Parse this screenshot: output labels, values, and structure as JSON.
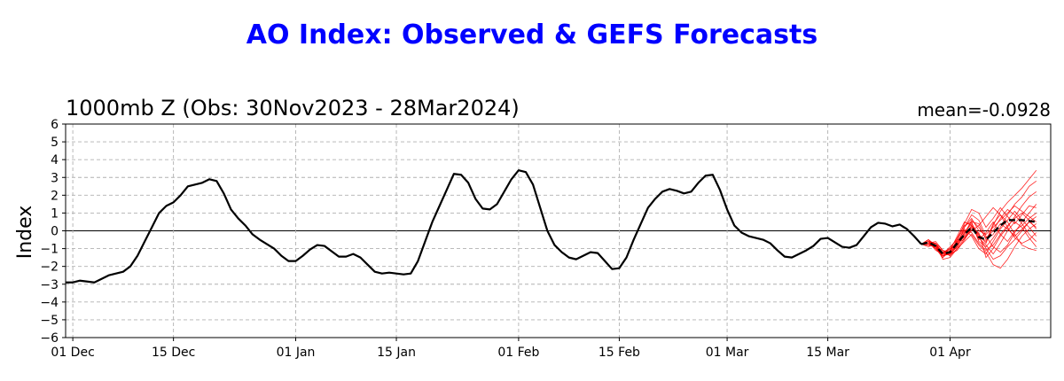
{
  "title": "AO Index: Observed & GEFS Forecasts",
  "subtitle_left": "1000mb Z (Obs: 30Nov2023 - 28Mar2024)",
  "subtitle_right": "mean=-0.0928",
  "colors": {
    "title": "#0000ff",
    "observed": "#000000",
    "members": "#ff0000",
    "grid": "#b0b0b0"
  },
  "chart_data": {
    "type": "line",
    "ylabel": "Index",
    "xlabel": "",
    "ylim": [
      -6,
      6
    ],
    "xlim": [
      "2023-11-30",
      "2024-04-15"
    ],
    "yticks": [
      -6,
      -5,
      -4,
      -3,
      -2,
      -1,
      0,
      1,
      2,
      3,
      4,
      5,
      6
    ],
    "xticks": [
      {
        "date": "2023-12-01",
        "label": "01 Dec"
      },
      {
        "date": "2023-12-15",
        "label": "15 Dec"
      },
      {
        "date": "2024-01-01",
        "label": "01 Jan"
      },
      {
        "date": "2024-01-15",
        "label": "15 Jan"
      },
      {
        "date": "2024-02-01",
        "label": "01 Feb"
      },
      {
        "date": "2024-02-15",
        "label": "15 Feb"
      },
      {
        "date": "2024-03-01",
        "label": "01 Mar"
      },
      {
        "date": "2024-03-15",
        "label": "15 Mar"
      },
      {
        "date": "2024-04-01",
        "label": "01 Apr"
      }
    ],
    "grid": true,
    "zero_line": true,
    "observed": {
      "start_date": "2023-11-30",
      "values": [
        -2.9,
        -2.9,
        -2.8,
        -2.85,
        -2.9,
        -2.7,
        -2.5,
        -2.4,
        -2.3,
        -2.0,
        -1.4,
        -0.6,
        0.2,
        1.0,
        1.4,
        1.6,
        2.0,
        2.5,
        2.6,
        2.7,
        2.9,
        2.8,
        2.1,
        1.2,
        0.7,
        0.3,
        -0.2,
        -0.5,
        -0.75,
        -1.0,
        -1.4,
        -1.7,
        -1.7,
        -1.4,
        -1.05,
        -0.8,
        -0.85,
        -1.15,
        -1.45,
        -1.45,
        -1.3,
        -1.5,
        -1.9,
        -2.3,
        -2.4,
        -2.35,
        -2.4,
        -2.45,
        -2.4,
        -1.7,
        -0.6,
        0.5,
        1.4,
        2.3,
        3.2,
        3.15,
        2.7,
        1.8,
        1.25,
        1.2,
        1.5,
        2.2,
        2.9,
        3.4,
        3.3,
        2.6,
        1.3,
        0.0,
        -0.8,
        -1.2,
        -1.5,
        -1.6,
        -1.4,
        -1.2,
        -1.25,
        -1.7,
        -2.15,
        -2.1,
        -1.5,
        -0.5,
        0.4,
        1.3,
        1.8,
        2.2,
        2.35,
        2.25,
        2.1,
        2.2,
        2.7,
        3.1,
        3.15,
        2.3,
        1.2,
        0.3,
        -0.1,
        -0.3,
        -0.4,
        -0.5,
        -0.7,
        -1.1,
        -1.45,
        -1.5,
        -1.3,
        -1.1,
        -0.85,
        -0.45,
        -0.4,
        -0.65,
        -0.9,
        -0.95,
        -0.8,
        -0.3,
        0.2,
        0.45,
        0.4,
        0.25,
        0.35,
        0.1,
        -0.3,
        -0.75
      ]
    },
    "ensemble_mean": {
      "start_date": "2024-03-28",
      "values": [
        -0.75,
        -0.65,
        -0.85,
        -1.3,
        -1.2,
        -0.7,
        -0.2,
        0.2,
        -0.35,
        -0.5,
        -0.1,
        0.3,
        0.6,
        0.6,
        0.6,
        0.55,
        0.5
      ]
    },
    "members": {
      "start_date": "2024-03-28",
      "series": [
        {
          "values": [
            -0.75,
            -0.6,
            -0.9,
            -1.4,
            -1.3,
            -0.9,
            -0.1,
            0.4,
            -0.2,
            -0.7,
            0.3,
            1.1,
            1.6,
            2.0,
            2.4,
            2.9,
            3.4
          ]
        },
        {
          "values": [
            -0.75,
            -0.7,
            -0.8,
            -1.2,
            -1.0,
            -0.4,
            0.3,
            0.5,
            -0.6,
            -0.9,
            -0.4,
            0.2,
            0.9,
            1.5,
            1.9,
            2.5,
            2.8
          ]
        },
        {
          "values": [
            -0.75,
            -0.5,
            -1.0,
            -1.5,
            -1.1,
            -0.6,
            -0.5,
            0.1,
            -0.1,
            -1.5,
            -1.0,
            -0.3,
            0.2,
            0.8,
            1.4,
            1.9,
            2.2
          ]
        },
        {
          "values": [
            -0.75,
            -0.8,
            -0.7,
            -1.1,
            -1.4,
            -0.8,
            0.2,
            0.9,
            0.6,
            -0.3,
            -0.9,
            -1.2,
            -0.8,
            -0.1,
            0.5,
            1.0,
            1.5
          ]
        },
        {
          "values": [
            -0.75,
            -0.6,
            -1.1,
            -1.3,
            -0.9,
            -0.5,
            -0.4,
            0.0,
            0.3,
            0.8,
            1.3,
            0.9,
            0.2,
            -0.4,
            -0.7,
            -0.5,
            -0.1
          ]
        },
        {
          "values": [
            -0.75,
            -0.7,
            -0.8,
            -1.6,
            -1.5,
            -1.0,
            -0.6,
            -0.2,
            -0.8,
            -1.2,
            -1.9,
            -2.1,
            -1.6,
            -0.9,
            -0.3,
            0.1,
            0.4
          ]
        },
        {
          "values": [
            -0.75,
            -0.5,
            -0.9,
            -1.2,
            -1.2,
            -0.5,
            0.4,
            1.2,
            1.0,
            0.2,
            0.7,
            1.3,
            0.8,
            0.4,
            0.9,
            1.4,
            1.3
          ]
        },
        {
          "values": [
            -0.75,
            -0.9,
            -0.7,
            -1.3,
            -1.0,
            -0.8,
            -0.3,
            0.3,
            -0.5,
            -0.1,
            0.5,
            -0.2,
            -0.6,
            0.0,
            0.3,
            0.7,
            1.0
          ]
        },
        {
          "values": [
            -0.75,
            -0.6,
            -1.0,
            -1.4,
            -1.3,
            -0.7,
            0.1,
            -0.3,
            -1.0,
            -1.3,
            -0.6,
            0.1,
            0.6,
            1.1,
            0.6,
            0.2,
            -0.3
          ]
        },
        {
          "values": [
            -0.75,
            -0.7,
            -0.6,
            -1.1,
            -1.2,
            -0.9,
            -0.2,
            0.6,
            0.2,
            -0.4,
            0.0,
            0.7,
            1.2,
            0.9,
            0.4,
            -0.2,
            -0.6
          ]
        },
        {
          "values": [
            -0.75,
            -0.8,
            -0.9,
            -1.5,
            -1.1,
            -0.3,
            0.5,
            0.3,
            -0.4,
            -0.8,
            -1.3,
            -0.7,
            0.0,
            0.5,
            0.2,
            -0.4,
            -0.9
          ]
        },
        {
          "values": [
            -0.75,
            -0.5,
            -0.8,
            -1.2,
            -1.4,
            -1.0,
            -0.4,
            0.2,
            -0.2,
            -0.6,
            0.4,
            0.9,
            0.5,
            -0.2,
            -0.8,
            -1.0,
            -1.1
          ]
        },
        {
          "values": [
            -0.75,
            -0.6,
            -0.7,
            -1.3,
            -1.3,
            -0.6,
            0.0,
            -0.1,
            -0.7,
            -1.1,
            -0.8,
            -0.2,
            0.3,
            0.7,
            1.0,
            0.6,
            0.1
          ]
        },
        {
          "values": [
            -0.75,
            -0.7,
            -1.0,
            -1.4,
            -1.2,
            -0.5,
            0.2,
            0.7,
            0.0,
            -0.2,
            0.2,
            0.6,
            1.0,
            1.4,
            1.1,
            0.8,
            0.5
          ]
        },
        {
          "values": [
            -0.75,
            -0.8,
            -0.9,
            -1.1,
            -1.3,
            -1.1,
            -0.5,
            0.3,
            -0.3,
            -1.0,
            -1.6,
            -1.4,
            -0.9,
            -0.5,
            0.0,
            0.5,
            0.8
          ]
        },
        {
          "values": [
            -0.75,
            -0.6,
            -0.8,
            -1.4,
            -1.0,
            -0.7,
            -0.1,
            0.5,
            0.4,
            -0.5,
            -0.2,
            0.4,
            0.1,
            -0.3,
            0.1,
            0.5,
            0.2
          ]
        }
      ]
    }
  }
}
